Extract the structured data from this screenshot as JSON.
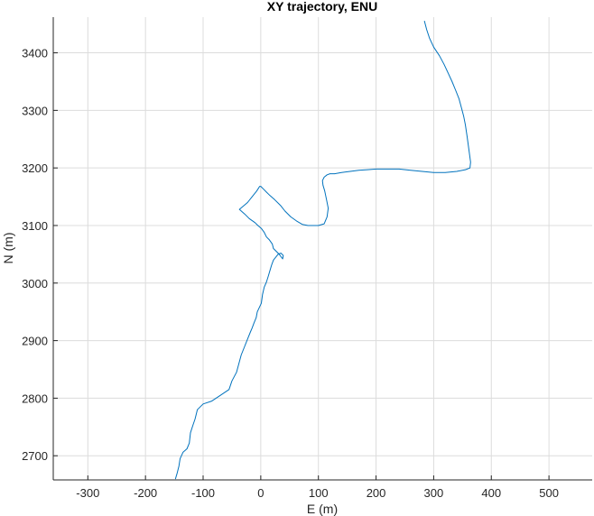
{
  "chart_data": {
    "type": "line",
    "title": "XY trajectory, ENU",
    "xlabel": "E (m)",
    "ylabel": "N (m)",
    "xlim": [
      -360,
      575
    ],
    "ylim": [
      2658,
      3462
    ],
    "xticks": [
      -300,
      -200,
      -100,
      0,
      100,
      200,
      300,
      400,
      500
    ],
    "yticks": [
      2700,
      2800,
      2900,
      3000,
      3100,
      3200,
      3300,
      3400
    ],
    "grid": true,
    "line_color": "#0072BD",
    "series": [
      {
        "x": [
          -148,
          -145,
          -142,
          -140,
          -135,
          -128,
          -124,
          -122,
          -118,
          -114,
          -110,
          -100,
          -85,
          -70,
          -55,
          -50,
          -42,
          -38,
          -34,
          -28,
          -22,
          -18,
          -15,
          -12,
          -8,
          -6,
          1,
          3,
          6,
          10,
          13,
          16,
          19,
          22,
          26,
          30,
          35,
          39,
          38,
          32,
          22,
          20,
          15,
          10,
          6,
          1,
          -5,
          -10,
          -20,
          -28,
          -37,
          -23,
          -15,
          -7,
          -2,
          0,
          5,
          10,
          16,
          24,
          34,
          42,
          52,
          62,
          72,
          82,
          92,
          100,
          110,
          115,
          117,
          114,
          111,
          108,
          107,
          110,
          115,
          120,
          128,
          140,
          155,
          170,
          185,
          200,
          220,
          240,
          260,
          280,
          300,
          320,
          340,
          355,
          363,
          364,
          362,
          360,
          358,
          355,
          352,
          348,
          344,
          338,
          332,
          325,
          318,
          310,
          300,
          293,
          288,
          284
        ],
        "y": [
          2660,
          2670,
          2682,
          2695,
          2706,
          2712,
          2722,
          2740,
          2752,
          2764,
          2780,
          2790,
          2795,
          2805,
          2815,
          2830,
          2845,
          2860,
          2875,
          2890,
          2905,
          2915,
          2922,
          2930,
          2940,
          2950,
          2965,
          2980,
          2993,
          3002,
          3012,
          3022,
          3032,
          3040,
          3045,
          3050,
          3052,
          3048,
          3042,
          3050,
          3060,
          3068,
          3075,
          3080,
          3088,
          3095,
          3100,
          3105,
          3112,
          3120,
          3128,
          3140,
          3150,
          3160,
          3168,
          3168,
          3163,
          3158,
          3152,
          3145,
          3135,
          3125,
          3115,
          3108,
          3102,
          3100,
          3100,
          3100,
          3103,
          3115,
          3130,
          3145,
          3160,
          3170,
          3178,
          3184,
          3188,
          3190,
          3190,
          3192,
          3194,
          3196,
          3197,
          3198,
          3198,
          3198,
          3196,
          3194,
          3192,
          3192,
          3194,
          3197,
          3200,
          3210,
          3225,
          3240,
          3255,
          3275,
          3290,
          3305,
          3320,
          3335,
          3350,
          3365,
          3380,
          3395,
          3410,
          3425,
          3440,
          3455
        ]
      }
    ]
  }
}
